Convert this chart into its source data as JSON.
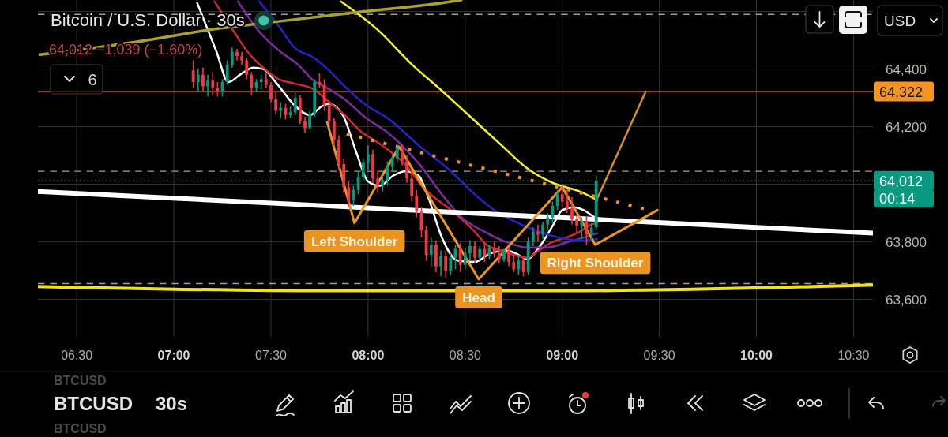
{
  "chart_data": {
    "type": "candlestick",
    "title": "Bitcoin / U.S. Dollar · 30s",
    "subtitle": "64,012 −1,039 (−1.60%)",
    "x": [
      7.1,
      7.125,
      7.15,
      7.175,
      7.2,
      7.225,
      7.25,
      7.275,
      7.3,
      7.325,
      7.35,
      7.375,
      7.4,
      7.425,
      7.45,
      7.475,
      7.5,
      7.525,
      7.55,
      7.575,
      7.6,
      7.625,
      7.65,
      7.675,
      7.7,
      7.725,
      7.75,
      7.775,
      7.8,
      7.825,
      7.85,
      7.875,
      7.9,
      7.925,
      7.95,
      7.975,
      8,
      8.025,
      8.05,
      8.075,
      8.1,
      8.125,
      8.15,
      8.175,
      8.2,
      8.225,
      8.25,
      8.275,
      8.3,
      8.325,
      8.35,
      8.375,
      8.4,
      8.425,
      8.45,
      8.475,
      8.5,
      8.525,
      8.55,
      8.575,
      8.6,
      8.625,
      8.65,
      8.675,
      8.7,
      8.725,
      8.75,
      8.775,
      8.8,
      8.825,
      8.85,
      8.875,
      8.9,
      8.925,
      8.95,
      8.975,
      9,
      9.025,
      9.05,
      9.075,
      9.1,
      9.125,
      9.15,
      9.175
    ],
    "ohlc": [
      [
        64395,
        64430,
        64335,
        64355
      ],
      [
        64355,
        64400,
        64320,
        64380
      ],
      [
        64380,
        64405,
        64325,
        64340
      ],
      [
        64340,
        64380,
        64305,
        64360
      ],
      [
        64360,
        64390,
        64310,
        64335
      ],
      [
        64335,
        64355,
        64305,
        64325
      ],
      [
        64325,
        64365,
        64305,
        64355
      ],
      [
        64355,
        64430,
        64345,
        64415
      ],
      [
        64415,
        64475,
        64405,
        64460
      ],
      [
        64460,
        64470,
        64430,
        64445
      ],
      [
        64445,
        64460,
        64415,
        64430
      ],
      [
        64430,
        64440,
        64365,
        64380
      ],
      [
        64380,
        64390,
        64310,
        64335
      ],
      [
        64335,
        64365,
        64320,
        64355
      ],
      [
        64355,
        64380,
        64330,
        64365
      ],
      [
        64365,
        64385,
        64335,
        64345
      ],
      [
        64345,
        64355,
        64285,
        64295
      ],
      [
        64295,
        64320,
        64245,
        64255
      ],
      [
        64255,
        64285,
        64230,
        64265
      ],
      [
        64265,
        64280,
        64225,
        64240
      ],
      [
        64240,
        64270,
        64230,
        64250
      ],
      [
        64250,
        64320,
        64240,
        64300
      ],
      [
        64300,
        64310,
        64210,
        64220
      ],
      [
        64220,
        64235,
        64180,
        64195
      ],
      [
        64195,
        64255,
        64190,
        64245
      ],
      [
        64245,
        64365,
        64235,
        64355
      ],
      [
        64355,
        64385,
        64335,
        64345
      ],
      [
        64345,
        64365,
        64255,
        64275
      ],
      [
        64275,
        64290,
        64200,
        64220
      ],
      [
        64220,
        64230,
        64135,
        64155
      ],
      [
        64155,
        64170,
        64050,
        64070
      ],
      [
        64070,
        64090,
        63970,
        63990
      ],
      [
        63990,
        64010,
        63920,
        63945
      ],
      [
        63945,
        63995,
        63925,
        63980
      ],
      [
        63980,
        64045,
        63965,
        64025
      ],
      [
        64025,
        64090,
        64010,
        64075
      ],
      [
        64075,
        64135,
        64050,
        64105
      ],
      [
        64105,
        64120,
        64005,
        64020
      ],
      [
        64020,
        64050,
        63970,
        63995
      ],
      [
        63995,
        64030,
        63975,
        64015
      ],
      [
        64015,
        64080,
        63995,
        64060
      ],
      [
        64060,
        64105,
        64045,
        64090
      ],
      [
        64090,
        64140,
        64075,
        64125
      ],
      [
        64125,
        64140,
        64065,
        64080
      ],
      [
        64080,
        64100,
        64005,
        64020
      ],
      [
        64020,
        64035,
        63940,
        63960
      ],
      [
        63960,
        63980,
        63885,
        63905
      ],
      [
        63905,
        63920,
        63815,
        63840
      ],
      [
        63840,
        63855,
        63735,
        63755
      ],
      [
        63755,
        63815,
        63715,
        63790
      ],
      [
        63790,
        63805,
        63695,
        63715
      ],
      [
        63715,
        63770,
        63680,
        63750
      ],
      [
        63750,
        63770,
        63675,
        63700
      ],
      [
        63700,
        63760,
        63685,
        63745
      ],
      [
        63745,
        63790,
        63705,
        63775
      ],
      [
        63775,
        63795,
        63695,
        63720
      ],
      [
        63720,
        63780,
        63705,
        63760
      ],
      [
        63760,
        63805,
        63735,
        63785
      ],
      [
        63785,
        63800,
        63725,
        63745
      ],
      [
        63745,
        63785,
        63735,
        63775
      ],
      [
        63775,
        63795,
        63730,
        63750
      ],
      [
        63750,
        63790,
        63740,
        63780
      ],
      [
        63780,
        63800,
        63745,
        63760
      ],
      [
        63760,
        63785,
        63725,
        63740
      ],
      [
        63740,
        63775,
        63730,
        63770
      ],
      [
        63770,
        63780,
        63715,
        63730
      ],
      [
        63730,
        63760,
        63695,
        63705
      ],
      [
        63705,
        63750,
        63685,
        63735
      ],
      [
        63735,
        63745,
        63680,
        63695
      ],
      [
        63695,
        63815,
        63685,
        63800
      ],
      [
        63800,
        63850,
        63785,
        63835
      ],
      [
        63835,
        63860,
        63800,
        63825
      ],
      [
        63825,
        63870,
        63810,
        63860
      ],
      [
        63860,
        63900,
        63840,
        63885
      ],
      [
        63885,
        63940,
        63865,
        63925
      ],
      [
        63925,
        63980,
        63910,
        63965
      ],
      [
        63965,
        64000,
        63920,
        63940
      ],
      [
        63940,
        63980,
        63900,
        63915
      ],
      [
        63915,
        63955,
        63860,
        63880
      ],
      [
        63880,
        63905,
        63830,
        63855
      ],
      [
        63855,
        63885,
        63810,
        63870
      ],
      [
        63870,
        63890,
        63790,
        63825
      ],
      [
        63825,
        63865,
        63805,
        63850
      ],
      [
        63850,
        64030,
        63840,
        64012
      ]
    ],
    "series": [
      {
        "type": "line",
        "color": "#ffffff",
        "x": [
          7.12,
          7.22,
          7.28,
          7.35,
          7.41,
          7.46,
          7.53,
          7.62,
          7.7,
          7.76,
          7.8,
          7.87,
          7.94,
          8,
          8.06,
          8.13,
          8.19,
          8.26,
          8.31,
          8.38,
          8.46,
          8.55,
          8.63,
          8.71,
          8.76,
          8.82,
          8.88,
          8.95,
          9,
          9.06,
          9.11,
          9.17,
          9.19
        ],
        "values": [
          64630,
          64460,
          64355,
          64385,
          64405,
          64400,
          64350,
          64275,
          64240,
          64270,
          64280,
          64240,
          64110,
          64010,
          63995,
          64030,
          64045,
          64030,
          63955,
          63815,
          63735,
          63730,
          63760,
          63770,
          63760,
          63740,
          63780,
          63855,
          63910,
          63920,
          63910,
          63885,
          63880
        ]
      },
      {
        "type": "line",
        "color": "#cf2a2a",
        "x": [
          7.21,
          7.3,
          7.38,
          7.46,
          7.54,
          7.62,
          7.72,
          7.8,
          7.88,
          7.96,
          8.05,
          8.14,
          8.21,
          8.27,
          8.34,
          8.41,
          8.48,
          8.55,
          8.61,
          8.68,
          8.75,
          8.82,
          8.88,
          8.95,
          9.02,
          9.09,
          9.15,
          9.18
        ],
        "values": [
          64635,
          64540,
          64460,
          64405,
          64365,
          64350,
          64330,
          64285,
          64240,
          64185,
          64145,
          64100,
          64055,
          64000,
          63955,
          63920,
          63880,
          63835,
          63790,
          63770,
          63755,
          63745,
          63770,
          63800,
          63815,
          63835,
          63860,
          63865
        ]
      },
      {
        "type": "line",
        "color": "#7e2aa0",
        "x": [
          7.33,
          7.44,
          7.54,
          7.64,
          7.72,
          7.8,
          7.88,
          7.99,
          8.1,
          8.27,
          8.38,
          8.49,
          8.6,
          8.71,
          8.82,
          8.92,
          9.03,
          9.11,
          9.18
        ],
        "values": [
          64635,
          64530,
          64465,
          64415,
          64360,
          64330,
          64295,
          64230,
          64180,
          64065,
          63965,
          63880,
          63835,
          63800,
          63780,
          63780,
          63800,
          63815,
          63830
        ]
      },
      {
        "type": "line",
        "color": "#2323c8",
        "x": [
          7.44,
          7.54,
          7.62,
          7.72,
          7.8,
          7.88,
          7.99,
          8.1,
          8.27,
          8.41,
          8.55,
          8.65,
          8.76,
          8.88,
          9.02,
          9.11,
          9.18
        ],
        "values": [
          64635,
          64550,
          64475,
          64440,
          64395,
          64340,
          64275,
          64230,
          64130,
          64055,
          63965,
          63910,
          63870,
          63835,
          63810,
          63805,
          63810
        ]
      },
      {
        "type": "line",
        "color": "#f2ef2b",
        "x": [
          7.86,
          8.06,
          8.22,
          8.38,
          8.55,
          8.68,
          8.82,
          8.95,
          9.09,
          9.18
        ],
        "values": [
          64635,
          64530,
          64420,
          64325,
          64220,
          64140,
          64055,
          64005,
          63975,
          63945
        ]
      },
      {
        "type": "line",
        "color": "#a9a130",
        "x": [
          6.31,
          6.81,
          7.22,
          7.53,
          7.98,
          8.38,
          8.48
        ],
        "values": [
          64450,
          64495,
          64540,
          64565,
          64600,
          64630,
          64640
        ]
      },
      {
        "type": "line",
        "color": "#f2e21c",
        "x": [
          6.3,
          7.8,
          9,
          10.6
        ],
        "values": [
          63645,
          63630,
          63630,
          63650
        ]
      },
      {
        "type": "line",
        "color": "#ffffff",
        "x": [
          6.3,
          10.6
        ],
        "values": [
          63975,
          63830
        ]
      },
      {
        "type": "line",
        "color": "#ec9420",
        "x": [
          7.79,
          7.93,
          8.16,
          8.57,
          9,
          9.17,
          9.49
        ],
        "values": [
          64215,
          63865,
          64130,
          63670,
          63990,
          63790,
          63910
        ]
      },
      {
        "type": "line",
        "color": "#ec9420",
        "line_style": "dotted",
        "x": [
          7.89,
          9.42
        ],
        "values": [
          64175,
          63915
        ]
      },
      {
        "type": "line",
        "color": "#d98d25",
        "x": [
          9.18,
          9.43
        ],
        "values": [
          63950,
          64322
        ]
      }
    ],
    "xlim": [
      6.3,
      10.6
    ],
    "ylim": [
      63470,
      64640
    ],
    "xticks": [
      {
        "value": 6.5,
        "label": "06:30"
      },
      {
        "value": 7,
        "label": "07:00"
      },
      {
        "value": 7.5,
        "label": "07:30"
      },
      {
        "value": 8,
        "label": "08:00"
      },
      {
        "value": 8.5,
        "label": "08:30"
      },
      {
        "value": 9,
        "label": "09:00"
      },
      {
        "value": 9.5,
        "label": "09:30"
      },
      {
        "value": 10,
        "label": "10:00"
      },
      {
        "value": 10.5,
        "label": "10:30"
      }
    ],
    "yticks": [
      {
        "value": 63600,
        "label": "63,600"
      },
      {
        "value": 63800,
        "label": "63,800"
      },
      {
        "value": 64000,
        "label": null
      },
      {
        "value": 64200,
        "label": "64,200"
      },
      {
        "value": 64400,
        "label": "64,400"
      },
      {
        "value": 64600,
        "label": null
      }
    ],
    "grid": true,
    "ref_lines": [
      {
        "axis": "y",
        "value": 64322,
        "label": "64,322",
        "color": "#f39322"
      },
      {
        "axis": "y",
        "value": 64012,
        "label": "64,012",
        "color": "#089981",
        "line_style": "dotted"
      },
      {
        "axis": "y",
        "value": 64045,
        "color": "#9e9e9e",
        "line_style": "dashed"
      },
      {
        "axis": "y",
        "value": 63655,
        "color": "#9e9e9e",
        "line_style": "dashed"
      },
      {
        "axis": "y",
        "value": 64590,
        "color": "#9e9e9e",
        "line_style": "dashed"
      }
    ],
    "annotations": [
      {
        "text": "Left Shoulder",
        "x": 7.93,
        "y": 63865
      },
      {
        "text": "Head",
        "x": 8.57,
        "y": 63670
      },
      {
        "text": "Right Shoulder",
        "x": 9.17,
        "y": 63790
      },
      "00:14",
      "6",
      "USD",
      "BTCUSD",
      "BTCUSD",
      "BTCUSD",
      "30s"
    ]
  }
}
